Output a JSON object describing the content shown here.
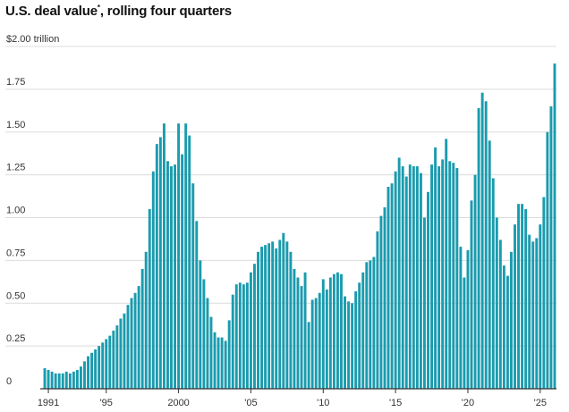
{
  "title": {
    "text": "U.S. deal value",
    "footnote_mark": "*",
    "suffix": ", rolling four quarters"
  },
  "colors": {
    "bar": "#1a9bae",
    "grid": "#dcdcdc",
    "axis": "#333333"
  },
  "chart_data": {
    "type": "bar",
    "title": "U.S. deal value*, rolling four quarters",
    "xlabel": "",
    "ylabel": "",
    "ylim": [
      0,
      2.0
    ],
    "grid": true,
    "y_ticks": [
      0,
      0.25,
      0.5,
      0.75,
      1.0,
      1.25,
      1.5,
      1.75,
      2.0
    ],
    "y_tick_labels": [
      "0",
      "0.25",
      "0.50",
      "0.75",
      "1.00",
      "1.25",
      "1.50",
      "1.75",
      "$2.00 trillion"
    ],
    "x_tick_labels": [
      {
        "year": 1991,
        "label": "1991"
      },
      {
        "year": 1995,
        "label": "'95"
      },
      {
        "year": 2000,
        "label": "2000"
      },
      {
        "year": 2005,
        "label": "'05"
      },
      {
        "year": 2010,
        "label": "'10"
      },
      {
        "year": 2015,
        "label": "'15"
      },
      {
        "year": 2020,
        "label": "'20"
      },
      {
        "year": 2025,
        "label": "'25"
      }
    ],
    "start_period": "1990 Q4",
    "frequency": "quarterly",
    "values": [
      0.12,
      0.11,
      0.1,
      0.09,
      0.09,
      0.09,
      0.1,
      0.09,
      0.1,
      0.11,
      0.13,
      0.16,
      0.19,
      0.21,
      0.23,
      0.25,
      0.27,
      0.29,
      0.31,
      0.34,
      0.37,
      0.41,
      0.44,
      0.49,
      0.53,
      0.56,
      0.6,
      0.7,
      0.8,
      1.05,
      1.27,
      1.43,
      1.47,
      1.55,
      1.33,
      1.3,
      1.31,
      1.55,
      1.37,
      1.55,
      1.48,
      1.2,
      0.98,
      0.75,
      0.64,
      0.53,
      0.42,
      0.33,
      0.3,
      0.3,
      0.28,
      0.4,
      0.55,
      0.61,
      0.62,
      0.61,
      0.62,
      0.68,
      0.73,
      0.8,
      0.83,
      0.84,
      0.85,
      0.86,
      0.82,
      0.87,
      0.91,
      0.86,
      0.8,
      0.7,
      0.65,
      0.6,
      0.68,
      0.39,
      0.52,
      0.53,
      0.56,
      0.64,
      0.58,
      0.65,
      0.67,
      0.68,
      0.67,
      0.54,
      0.51,
      0.5,
      0.57,
      0.62,
      0.68,
      0.74,
      0.75,
      0.77,
      0.92,
      1.01,
      1.06,
      1.18,
      1.2,
      1.27,
      1.35,
      1.3,
      1.24,
      1.31,
      1.3,
      1.3,
      1.26,
      1.0,
      1.15,
      1.31,
      1.41,
      1.3,
      1.34,
      1.46,
      1.33,
      1.32,
      1.29,
      0.83,
      0.65,
      0.81,
      1.1,
      1.25,
      1.64,
      1.73,
      1.68,
      1.45,
      1.23,
      1.0,
      0.87,
      0.72,
      0.66,
      0.8,
      0.96,
      1.08,
      1.08,
      1.05,
      0.9,
      0.86,
      0.88,
      0.96,
      1.12,
      1.5,
      1.65,
      1.9
    ]
  }
}
